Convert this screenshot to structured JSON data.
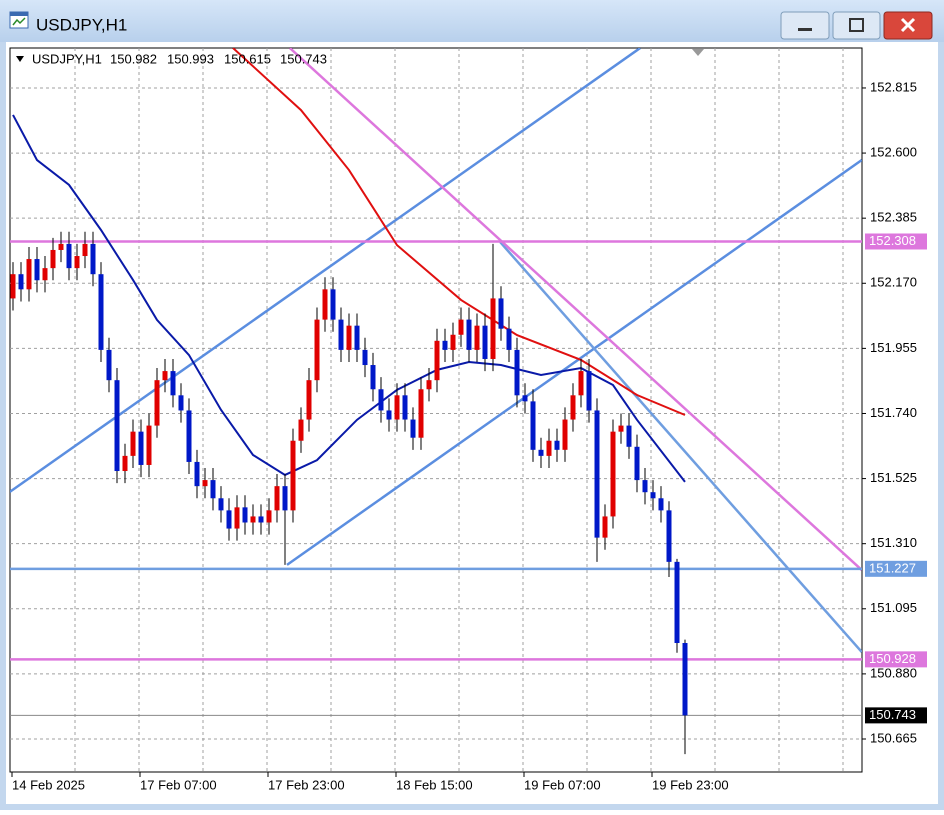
{
  "chart_data": {
    "type": "candlestick",
    "title": "USDJPY,H1",
    "categories": [
      "14 Feb 2025",
      null,
      null,
      null,
      null,
      null,
      null,
      null,
      null,
      null,
      null,
      null,
      null,
      null,
      null,
      null,
      "17 Feb 07:00",
      null,
      null,
      null,
      null,
      null,
      null,
      null,
      null,
      null,
      null,
      null,
      null,
      null,
      null,
      null,
      "17 Feb 23:00",
      null,
      null,
      null,
      null,
      null,
      null,
      null,
      null,
      null,
      null,
      null,
      null,
      null,
      null,
      null,
      "18 Feb 15:00",
      null,
      null,
      null,
      null,
      null,
      null,
      null,
      null,
      null,
      null,
      null,
      null,
      null,
      null,
      null,
      "19 Feb 07:00",
      null,
      null,
      null,
      null,
      null,
      null,
      null,
      null,
      null,
      null,
      null,
      null,
      null,
      null,
      null,
      "19 Feb 23:00",
      null,
      null,
      null,
      null
    ],
    "open": [
      152.12,
      152.2,
      152.15,
      152.25,
      152.18,
      152.22,
      152.28,
      152.3,
      152.22,
      152.26,
      152.3,
      152.2,
      151.95,
      151.85,
      151.55,
      151.6,
      151.68,
      151.57,
      151.7,
      151.85,
      151.88,
      151.8,
      151.75,
      151.58,
      151.5,
      151.52,
      151.46,
      151.42,
      151.36,
      151.43,
      151.38,
      151.4,
      151.38,
      151.42,
      151.5,
      151.42,
      151.65,
      151.72,
      151.85,
      152.05,
      152.15,
      152.05,
      151.95,
      152.03,
      151.95,
      151.9,
      151.82,
      151.75,
      151.72,
      151.8,
      151.72,
      151.66,
      151.82,
      151.85,
      151.98,
      151.95,
      152.0,
      152.05,
      151.95,
      152.03,
      151.92,
      152.12,
      152.02,
      151.95,
      151.8,
      151.78,
      151.62,
      151.6,
      151.65,
      151.62,
      151.72,
      151.8,
      151.88,
      151.75,
      151.33,
      151.4,
      151.68,
      151.7,
      151.63,
      151.52,
      151.48,
      151.46,
      151.42,
      151.25,
      150.982
    ],
    "high": [
      152.24,
      152.24,
      152.29,
      152.29,
      152.26,
      152.32,
      152.34,
      152.34,
      152.3,
      152.34,
      152.34,
      152.24,
      151.99,
      151.89,
      151.64,
      151.72,
      151.72,
      151.74,
      151.89,
      151.92,
      151.92,
      151.84,
      151.79,
      151.62,
      151.56,
      151.56,
      151.5,
      151.46,
      151.47,
      151.47,
      151.44,
      151.44,
      151.46,
      151.54,
      151.54,
      151.69,
      151.76,
      151.89,
      152.09,
      152.19,
      152.19,
      152.09,
      152.07,
      152.07,
      151.99,
      151.94,
      151.86,
      151.79,
      151.84,
      151.84,
      151.76,
      151.86,
      151.89,
      152.02,
      152.02,
      152.04,
      152.09,
      152.09,
      152.07,
      152.07,
      152.3,
      152.16,
      152.06,
      151.99,
      151.84,
      151.82,
      151.66,
      151.69,
      151.69,
      151.76,
      151.84,
      151.92,
      151.92,
      151.79,
      151.44,
      151.72,
      151.74,
      151.74,
      151.67,
      151.56,
      151.52,
      151.5,
      151.45,
      151.26,
      150.993
    ],
    "low": [
      152.08,
      152.11,
      152.11,
      152.14,
      152.14,
      152.18,
      152.24,
      152.18,
      152.18,
      152.22,
      152.16,
      151.91,
      151.81,
      151.51,
      151.51,
      151.56,
      151.53,
      151.53,
      151.66,
      151.81,
      151.76,
      151.71,
      151.54,
      151.46,
      151.46,
      151.42,
      151.38,
      151.32,
      151.32,
      151.34,
      151.34,
      151.34,
      151.34,
      151.38,
      151.24,
      151.38,
      151.61,
      151.68,
      151.81,
      152.01,
      152.01,
      151.91,
      151.91,
      151.91,
      151.86,
      151.78,
      151.71,
      151.68,
      151.68,
      151.68,
      151.62,
      151.62,
      151.78,
      151.81,
      151.91,
      151.91,
      151.96,
      151.91,
      151.91,
      151.88,
      151.88,
      151.98,
      151.91,
      151.76,
      151.74,
      151.58,
      151.56,
      151.56,
      151.58,
      151.58,
      151.68,
      151.76,
      151.71,
      151.25,
      151.29,
      151.36,
      151.64,
      151.59,
      151.48,
      151.44,
      151.42,
      151.38,
      151.2,
      150.95,
      150.615
    ],
    "close": [
      152.2,
      152.15,
      152.25,
      152.18,
      152.22,
      152.28,
      152.3,
      152.22,
      152.26,
      152.3,
      152.2,
      151.95,
      151.85,
      151.55,
      151.6,
      151.68,
      151.57,
      151.7,
      151.85,
      151.88,
      151.8,
      151.75,
      151.58,
      151.5,
      151.52,
      151.46,
      151.42,
      151.36,
      151.43,
      151.38,
      151.4,
      151.38,
      151.42,
      151.5,
      151.42,
      151.65,
      151.72,
      151.85,
      152.05,
      152.15,
      152.05,
      151.95,
      152.03,
      151.95,
      151.9,
      151.82,
      151.75,
      151.72,
      151.8,
      151.72,
      151.66,
      151.82,
      151.85,
      151.98,
      151.95,
      152.0,
      152.05,
      151.95,
      152.03,
      151.92,
      152.12,
      152.02,
      151.95,
      151.8,
      151.78,
      151.62,
      151.6,
      151.65,
      151.62,
      151.72,
      151.8,
      151.88,
      151.75,
      151.33,
      151.4,
      151.68,
      151.7,
      151.63,
      151.52,
      151.48,
      151.46,
      151.42,
      151.25,
      150.982,
      150.743
    ],
    "up_color": "#e00000",
    "down_color": "#0018c8",
    "ylim": [
      150.556,
      152.947
    ],
    "yticks": [
      152.815,
      {
        "value": 152.6,
        "label": "152.600"
      },
      152.385,
      {
        "value": 152.17,
        "label": "152.170"
      },
      151.955,
      {
        "value": 151.74,
        "label": "151.740"
      },
      151.525,
      {
        "value": 151.31,
        "label": "151.310"
      },
      151.095,
      {
        "value": 150.88,
        "label": "150.880"
      },
      150.665
    ],
    "grid": true,
    "overlays": [
      {
        "color": "#0a1aa8",
        "x": [
          0,
          3,
          7,
          11,
          15,
          18,
          22,
          26,
          30,
          34,
          38,
          43,
          48,
          53,
          57,
          61,
          66,
          71,
          75,
          78,
          84
        ],
        "values": [
          152.726,
          152.577,
          152.495,
          152.346,
          152.181,
          152.049,
          151.933,
          151.752,
          151.603,
          151.537,
          151.586,
          151.719,
          151.818,
          151.884,
          151.91,
          151.9,
          151.867,
          151.89,
          151.834,
          151.719,
          151.514
        ]
      },
      {
        "color": "#e01010",
        "x": [
          27.5,
          36,
          42,
          48,
          56,
          63,
          71,
          78,
          84
        ],
        "values": [
          152.947,
          152.742,
          152.544,
          152.296,
          152.115,
          151.999,
          151.917,
          151.801,
          151.735
        ]
      }
    ],
    "trendlines": [
      {
        "color": "#5b8ee0",
        "x": [
          -0.4,
          78.4
        ],
        "values": [
          151.481,
          152.947
        ]
      },
      {
        "color": "#5b8ee0",
        "x": [
          34.25,
          106.1
        ],
        "values": [
          151.24,
          152.577
        ]
      },
      {
        "color": "#6f9ee0",
        "x": [
          60.9,
          106.1
        ],
        "values": [
          152.306,
          150.952
        ]
      },
      {
        "color": "#dd77dd",
        "x": [
          34.6,
          106.1
        ],
        "values": [
          152.947,
          151.223
        ]
      }
    ],
    "hlines": [
      {
        "value": 152.308,
        "color": "#dd77dd"
      },
      {
        "value": 151.227,
        "color": "#6f9ee0"
      },
      {
        "value": 150.928,
        "color": "#dd77dd"
      },
      {
        "value": 150.743,
        "color": "#000000"
      }
    ]
  }
}
